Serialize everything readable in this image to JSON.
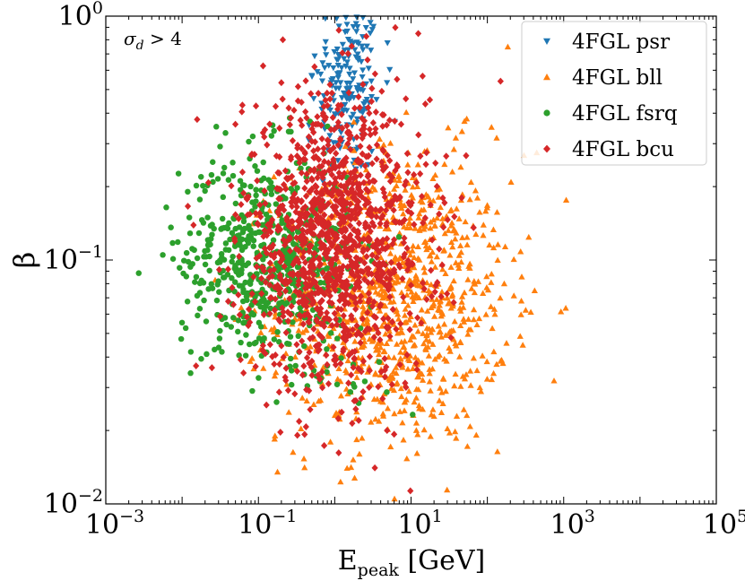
{
  "chart_data": {
    "type": "scatter",
    "title": "",
    "xlabel_main": "E",
    "xlabel_sub": "peak",
    "xlabel_unit": " [GeV]",
    "ylabel": "β",
    "xscale": "log",
    "yscale": "log",
    "xlim": [
      0.001,
      100000
    ],
    "ylim": [
      0.01,
      1
    ],
    "annotation": {
      "sym": "σ",
      "sub": "d",
      "rest": " > 4"
    },
    "x_ticks": [
      {
        "value": 0.001,
        "base": "10",
        "exp": "−3"
      },
      {
        "value": 0.1,
        "base": "10",
        "exp": "−1"
      },
      {
        "value": 10,
        "base": "10",
        "exp": "1"
      },
      {
        "value": 1000,
        "base": "10",
        "exp": "3"
      },
      {
        "value": 100000,
        "base": "10",
        "exp": "5"
      }
    ],
    "y_ticks": [
      {
        "value": 0.01,
        "base": "10",
        "exp": "−2"
      },
      {
        "value": 0.1,
        "base": "10",
        "exp": "−1"
      },
      {
        "value": 1,
        "base": "10",
        "exp": "0"
      }
    ],
    "legend_position": "top-right",
    "series": [
      {
        "name": "4FGL psr",
        "color": "#1f77b4",
        "marker": "triangle-down",
        "count": 180,
        "center": [
          1.5,
          0.5
        ],
        "spread": [
          0.22,
          0.18
        ],
        "cap": true
      },
      {
        "name": "4FGL bll",
        "color": "#ff7f0e",
        "marker": "triangle-up",
        "count": 1000,
        "center": [
          6,
          0.07
        ],
        "spread": [
          0.75,
          0.3
        ],
        "cap": true
      },
      {
        "name": "4FGL fsrq",
        "color": "#2ca02c",
        "marker": "circle",
        "count": 600,
        "center": [
          0.12,
          0.1
        ],
        "spread": [
          0.55,
          0.22
        ],
        "cap": true
      },
      {
        "name": "4FGL bcu",
        "color": "#d62728",
        "marker": "diamond",
        "count": 1200,
        "center": [
          1.0,
          0.12
        ],
        "spread": [
          0.6,
          0.3
        ],
        "cap": true
      }
    ]
  }
}
